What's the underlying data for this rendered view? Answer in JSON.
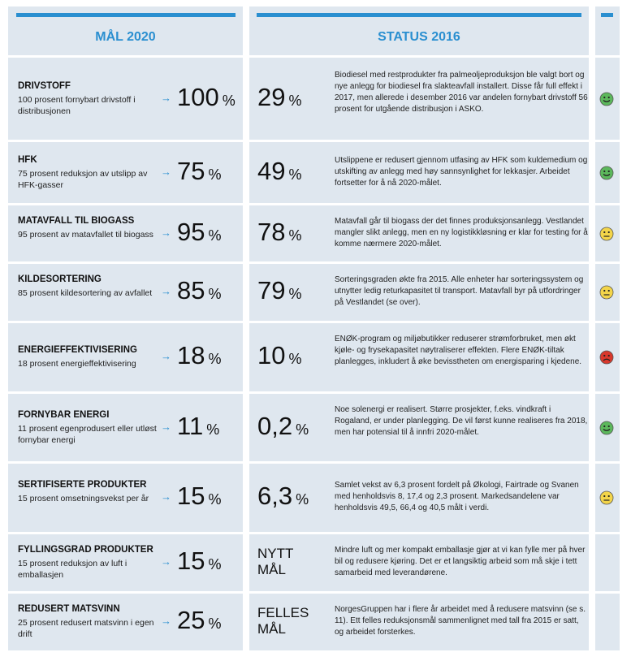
{
  "header": {
    "left": "MÅL 2020",
    "right": "STATUS 2016"
  },
  "rows": [
    {
      "title": "DRIVSTOFF",
      "description": "100 prosent fornybart drivstoff i distribusjonen",
      "target": "100",
      "target_unit": "%",
      "status": "29",
      "status_unit": "%",
      "status_text": "Biodiesel med restprodukter fra palmeoljeproduksjon ble valgt bort og nye anlegg for biodiesel fra slakteavfall installert. Disse får full effekt i 2017, men allerede i desember 2016 var andelen fornybart drivstoff 56 prosent for utgående distribusjon i ASKO.",
      "smiley": "green"
    },
    {
      "title": "HFK",
      "description": "75 prosent reduksjon av utslipp av HFK-gasser",
      "target": "75",
      "target_unit": "%",
      "status": "49",
      "status_unit": "%",
      "status_text": "Utslippene er redusert gjennom utfasing av HFK som kuldemedium og utskifting av anlegg med høy sannsynlighet for lekkasjer. Arbeidet fortsetter for å nå 2020-målet.",
      "smiley": "green"
    },
    {
      "title": "MATAVFALL TIL BIOGASS",
      "description": "95 prosent av matavfallet til biogass",
      "target": "95",
      "target_unit": "%",
      "status": "78",
      "status_unit": "%",
      "status_text": "Matavfall går til biogass der det finnes produksjonsanlegg. Vestlandet mangler slikt anlegg, men en ny logistikkløsning er klar for testing for å komme nærmere 2020-målet.",
      "smiley": "yellow"
    },
    {
      "title": "KILDESORTERING",
      "description": "85 prosent kildesortering av avfallet",
      "target": "85",
      "target_unit": "%",
      "status": "79",
      "status_unit": "%",
      "status_text": "Sorteringsgraden økte fra 2015. Alle enheter har sorteringssystem og utnytter ledig returkapasitet til transport. Matavfall byr på utfordringer på Vestlandet (se over).",
      "smiley": "yellow"
    },
    {
      "title": "ENERGIEFFEKTIVISERING",
      "description": "18 prosent energieffektivisering",
      "target": "18",
      "target_unit": "%",
      "status": "10",
      "status_unit": "%",
      "status_text": "ENØK-program og miljøbutikker reduserer strømforbruket, men økt kjøle- og frysekapasitet nøytraliserer effekten. Flere ENØK-tiltak planlegges, inkludert å øke bevisstheten om energisparing i kjedene.",
      "smiley": "red"
    },
    {
      "title": "FORNYBAR ENERGI",
      "description": "11 prosent egenprodusert eller utløst fornybar energi",
      "target": "11",
      "target_unit": "%",
      "status": "0,2",
      "status_unit": "%",
      "status_text": "Noe solenergi er realisert. Større prosjekter, f.eks. vindkraft i Rogaland, er under planlegging. De vil først kunne realiseres fra 2018, men har potensial til å innfri 2020-målet.",
      "smiley": "green"
    },
    {
      "title": "SERTIFISERTE PRODUKTER",
      "description": "15 prosent omsetningsvekst per år",
      "target": "15",
      "target_unit": "%",
      "status": "6,3",
      "status_unit": "%",
      "status_text": "Samlet vekst av 6,3 prosent fordelt på Økologi, Fairtrade og Svanen med henholdsvis 8, 17,4 og 2,3 prosent. Markedsandelene var henholdsvis 49,5, 66,4 og 40,5 målt i verdi.",
      "smiley": "yellow"
    },
    {
      "title": "FYLLINGSGRAD PRODUKTER",
      "description": "15 prosent reduksjon av luft i emballasjen",
      "target": "15",
      "target_unit": "%",
      "status_label": "NYTT MÅL",
      "status_text": "Mindre luft og mer kompakt emballasje gjør at vi kan fylle mer på hver bil og redusere kjøring. Det er et langsiktig arbeid som må skje i tett samarbeid med leverandørene."
    },
    {
      "title": "REDUSERT MATSVINN",
      "description": "25 prosent redusert matsvinn i egen drift",
      "target": "25",
      "target_unit": "%",
      "status_label": "FELLES MÅL",
      "status_text": "NorgesGruppen har i flere år arbeidet med å redusere matsvinn (se s. 11). Ett felles reduksjonsmål sammenlignet med tall fra 2015 er satt, og arbeidet forsterkes."
    }
  ]
}
